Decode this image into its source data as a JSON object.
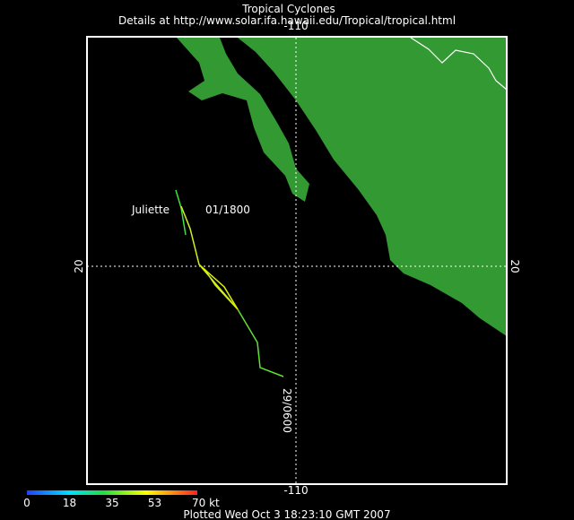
{
  "header": {
    "title": "Tropical Cyclones",
    "details": "Details at http://www.solar.ifa.hawaii.edu/Tropical/tropical.html"
  },
  "map": {
    "lon_label_top": "-110",
    "lon_label_bottom": "-110",
    "lat_label_left": "20",
    "lat_label_right": "20",
    "storm": {
      "name": "Juliette",
      "start_time": "01/1800",
      "end_time": "29/0600"
    }
  },
  "legend": {
    "labels": [
      "0",
      "18",
      "35",
      "53",
      "70 kt"
    ]
  },
  "footer": {
    "plotted": "Plotted Wed Oct 3 18:23:10 GMT 2007"
  }
}
